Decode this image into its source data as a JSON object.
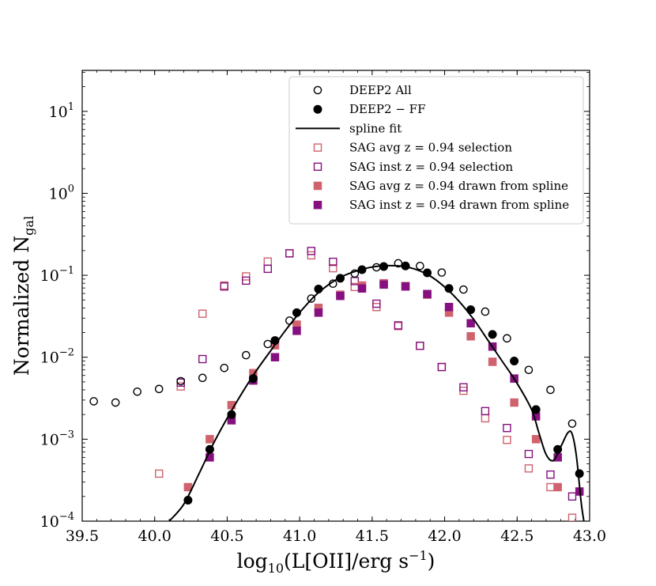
{
  "chart_data": {
    "type": "scatter",
    "xlabel": "log10(L[OII]/erg s^-1)",
    "ylabel": "Normalized N_gal",
    "xlim": [
      39.5,
      43.0
    ],
    "ylim_log10": [
      -4,
      1.5
    ],
    "x_ticks": [
      {
        "value": 39.5,
        "label": "39.5"
      },
      {
        "value": 40.0,
        "label": "40.0"
      },
      {
        "value": 40.5,
        "label": "40.5"
      },
      {
        "value": 41.0,
        "label": "41.0"
      },
      {
        "value": 41.5,
        "label": "41.5"
      },
      {
        "value": 42.0,
        "label": "42.0"
      },
      {
        "value": 42.5,
        "label": "42.5"
      },
      {
        "value": 43.0,
        "label": "43.0"
      }
    ],
    "y_ticks": [
      {
        "exp": 1,
        "label": "10",
        "sup": "1"
      },
      {
        "exp": 0,
        "label": "10",
        "sup": "0"
      },
      {
        "exp": -1,
        "label": "10",
        "sup": "−1"
      },
      {
        "exp": -2,
        "label": "10",
        "sup": "−2"
      },
      {
        "exp": -3,
        "label": "10",
        "sup": "−3"
      },
      {
        "exp": -4,
        "label": "10",
        "sup": "−4"
      }
    ],
    "legend_position": "top-right",
    "colors": {
      "deep2": "#000000",
      "sag_avg": "#d0626e",
      "sag_inst": "#85107f"
    },
    "series": [
      {
        "name": "DEEP2 All",
        "marker": "circle-open",
        "color": "#000000",
        "x": [
          39.58,
          39.73,
          39.88,
          40.03,
          40.18,
          40.33,
          40.48,
          40.63,
          40.78,
          40.93,
          41.08,
          41.23,
          41.38,
          41.53,
          41.68,
          41.83,
          41.98,
          42.13,
          42.28,
          42.43,
          42.58,
          42.73,
          42.88
        ],
        "y": [
          0.0029,
          0.0028,
          0.0038,
          0.0041,
          0.0051,
          0.0056,
          0.0074,
          0.0106,
          0.0145,
          0.028,
          0.052,
          0.079,
          0.105,
          0.125,
          0.14,
          0.13,
          0.108,
          0.067,
          0.036,
          0.017,
          0.007,
          0.004,
          0.00155
        ]
      },
      {
        "name": "DEEP2 − FF",
        "marker": "circle-filled",
        "color": "#000000",
        "x": [
          40.23,
          40.38,
          40.53,
          40.68,
          40.83,
          40.98,
          41.13,
          41.28,
          41.43,
          41.58,
          41.73,
          41.88,
          42.03,
          42.18,
          42.33,
          42.48,
          42.63,
          42.78,
          42.93
        ],
        "y": [
          0.00018,
          0.00075,
          0.002,
          0.0055,
          0.016,
          0.035,
          0.068,
          0.092,
          0.117,
          0.128,
          0.13,
          0.107,
          0.069,
          0.038,
          0.019,
          0.009,
          0.0023,
          0.00075,
          0.00038
        ]
      },
      {
        "name": "spline fit",
        "marker": "line",
        "color": "#000000",
        "x": [
          40.1,
          40.2,
          40.3,
          40.4,
          40.5,
          40.6,
          40.7,
          40.8,
          40.9,
          41.0,
          41.1,
          41.2,
          41.3,
          41.4,
          41.5,
          41.6,
          41.7,
          41.8,
          41.9,
          42.0,
          42.1,
          42.2,
          42.3,
          42.4,
          42.5,
          42.6,
          42.65,
          42.7,
          42.75,
          42.8,
          42.85,
          42.88,
          42.91,
          42.94,
          42.96
        ],
        "y": [
          0.0001,
          0.00016,
          0.00036,
          0.00085,
          0.0018,
          0.0036,
          0.0068,
          0.012,
          0.021,
          0.035,
          0.055,
          0.077,
          0.098,
          0.114,
          0.126,
          0.131,
          0.129,
          0.118,
          0.098,
          0.072,
          0.048,
          0.029,
          0.016,
          0.0088,
          0.0048,
          0.0023,
          0.0012,
          0.00065,
          0.00055,
          0.0008,
          0.0012,
          0.00115,
          0.0006,
          0.00018,
          0.0001
        ]
      },
      {
        "name": "SAG avg z = 0.94 selection",
        "marker": "square-open",
        "color": "#d0626e",
        "x": [
          40.03,
          40.18,
          40.33,
          40.48,
          40.63,
          40.78,
          40.93,
          41.08,
          41.23,
          41.38,
          41.53,
          41.68,
          41.83,
          41.98,
          42.13,
          42.28,
          42.43,
          42.58,
          42.73,
          42.88
        ],
        "y": [
          0.00038,
          0.0044,
          0.034,
          0.075,
          0.097,
          0.147,
          0.186,
          0.175,
          0.122,
          0.072,
          0.041,
          0.024,
          0.0138,
          0.0076,
          0.0039,
          0.0018,
          0.00098,
          0.00044,
          0.00026,
          0.00011
        ]
      },
      {
        "name": "SAG inst z = 0.94 selection",
        "marker": "square-open",
        "color": "#85107f",
        "x": [
          40.18,
          40.33,
          40.48,
          40.63,
          40.78,
          40.93,
          41.08,
          41.23,
          41.38,
          41.53,
          41.68,
          41.83,
          41.98,
          42.13,
          42.28,
          42.43,
          42.58,
          42.73,
          42.88
        ],
        "y": [
          0.0049,
          0.0095,
          0.073,
          0.086,
          0.12,
          0.185,
          0.198,
          0.146,
          0.085,
          0.045,
          0.0245,
          0.0138,
          0.0076,
          0.0043,
          0.0022,
          0.00137,
          0.00066,
          0.00037,
          0.0002
        ]
      },
      {
        "name": "SAG avg z = 0.94 drawn from spline",
        "marker": "square-filled",
        "color": "#d0626e",
        "x": [
          40.23,
          40.38,
          40.53,
          40.68,
          40.83,
          40.98,
          41.13,
          41.28,
          41.43,
          41.58,
          41.73,
          41.88,
          42.03,
          42.18,
          42.33,
          42.48,
          42.63,
          42.78
        ],
        "y": [
          0.00026,
          0.001,
          0.0026,
          0.0064,
          0.014,
          0.025,
          0.04,
          0.058,
          0.075,
          0.08,
          0.074,
          0.058,
          0.035,
          0.018,
          0.0088,
          0.0028,
          0.001,
          0.00026
        ]
      },
      {
        "name": "SAG inst z = 0.94 drawn from spline",
        "marker": "square-filled",
        "color": "#85107f",
        "x": [
          40.38,
          40.53,
          40.68,
          40.83,
          40.98,
          41.13,
          41.28,
          41.43,
          41.58,
          41.73,
          41.88,
          42.03,
          42.18,
          42.33,
          42.48,
          42.63,
          42.78,
          42.93
        ],
        "y": [
          0.0006,
          0.0017,
          0.0052,
          0.01,
          0.021,
          0.035,
          0.056,
          0.069,
          0.077,
          0.073,
          0.059,
          0.041,
          0.026,
          0.0135,
          0.0055,
          0.0019,
          0.0006,
          0.00023
        ]
      }
    ]
  }
}
